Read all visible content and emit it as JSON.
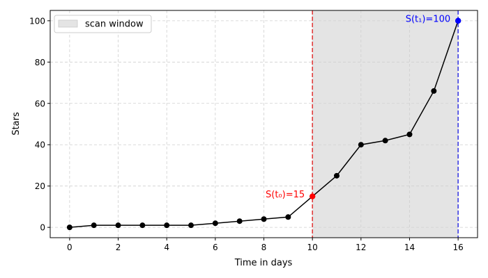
{
  "chart_data": {
    "type": "line",
    "xlabel": "Time in days",
    "ylabel": "Stars",
    "xlim": [
      -0.8,
      16.8
    ],
    "ylim": [
      -5,
      105
    ],
    "xticks": [
      0,
      2,
      4,
      6,
      8,
      10,
      12,
      14,
      16
    ],
    "yticks": [
      0,
      20,
      40,
      60,
      80,
      100
    ],
    "grid": true,
    "legend_position": "top-left",
    "series": [
      {
        "x": [
          0,
          1,
          2,
          3,
          4,
          5,
          6,
          7,
          8,
          9,
          10,
          11,
          12,
          13,
          14,
          15,
          16
        ],
        "values": [
          0,
          1,
          1,
          1,
          1,
          1,
          2,
          3,
          4,
          5,
          15,
          25,
          40,
          42,
          45,
          66,
          100
        ],
        "color": "#000000"
      }
    ],
    "shaded_region": {
      "label": "scan window",
      "x_start": 10,
      "x_end": 16,
      "color": "#e4e4e4"
    },
    "markers": [
      {
        "x": 10,
        "y": 15,
        "label": "S(t₀)=15",
        "color": "#ff0000",
        "line_color": "#e03030"
      },
      {
        "x": 16,
        "y": 100,
        "label": "S(t₁)=100",
        "color": "#0000ff",
        "line_color": "#3030e0"
      }
    ]
  }
}
